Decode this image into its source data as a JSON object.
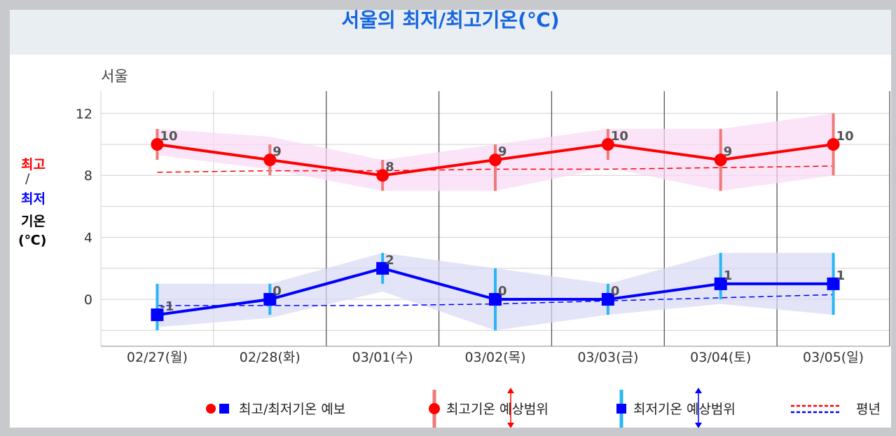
{
  "title": "서울의 최저/최고기온(℃)",
  "region": "서울",
  "y_axis_label": {
    "max": "최고",
    "slash": "/",
    "min": "최저",
    "temp": "기온",
    "unit": "(℃)"
  },
  "legend": {
    "forecast": "최고/최저기온 예보",
    "max_range": "최고기온 예상범위",
    "min_range": "최저기온 예상범위",
    "normal": "평년"
  },
  "colors": {
    "max": "#ff0000",
    "min": "#0000ff",
    "max_range_bar": "#f07a7a",
    "min_range_bar": "#29b6f6",
    "max_band": "#f9d8f3",
    "min_band": "#d9d9f5",
    "title": "#1565e0"
  },
  "chart_data": {
    "type": "line",
    "categories": [
      "02/27(월)",
      "02/28(화)",
      "03/01(수)",
      "03/02(목)",
      "03/03(금)",
      "03/04(토)",
      "03/05(일)"
    ],
    "y_ticks": [
      12,
      8,
      4,
      0
    ],
    "ylim": [
      -3,
      13
    ],
    "series": [
      {
        "key": "max",
        "values": [
          10,
          9,
          8,
          9,
          10,
          9,
          10
        ],
        "labels": [
          "10",
          "9",
          "8",
          "9",
          "10",
          "9",
          "10"
        ]
      },
      {
        "key": "min",
        "values": [
          -1,
          0,
          2,
          0,
          0,
          1,
          1
        ],
        "labels": [
          "-1",
          "0",
          "2",
          "0",
          "0",
          "1",
          "1"
        ]
      }
    ],
    "max_range_low": [
      9,
      8,
      7,
      7,
      9,
      7,
      8
    ],
    "max_range_high": [
      11,
      10,
      9,
      10,
      11,
      11,
      12
    ],
    "min_range_low": [
      -2,
      -1,
      1,
      -2,
      -1,
      0,
      -1
    ],
    "min_range_high": [
      1,
      1,
      3,
      2,
      1,
      3,
      3
    ],
    "max_band_low": [
      9.3,
      8.4,
      7.0,
      7.0,
      8.5,
      7.0,
      8.0
    ],
    "max_band_high": [
      11.0,
      10.5,
      9.0,
      10.0,
      11.0,
      11.0,
      12.0
    ],
    "min_band_low": [
      -1.8,
      -1.2,
      0.5,
      -2.0,
      -1.0,
      -0.3,
      -1.0
    ],
    "min_band_high": [
      1.0,
      1.0,
      3.0,
      2.0,
      1.0,
      3.0,
      3.0
    ],
    "normal_max": [
      8.2,
      8.3,
      8.3,
      8.4,
      8.4,
      8.5,
      8.6
    ],
    "normal_min": [
      -0.4,
      -0.4,
      -0.4,
      -0.3,
      -0.1,
      0.1,
      0.3
    ]
  }
}
